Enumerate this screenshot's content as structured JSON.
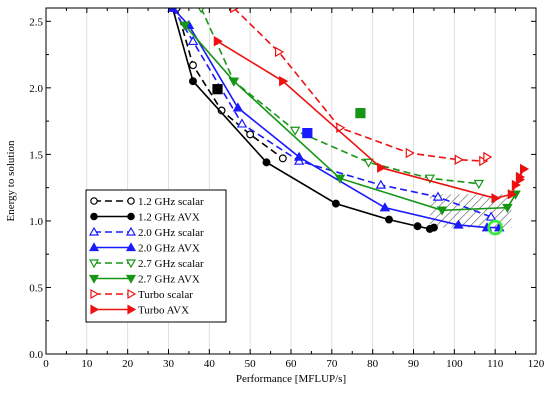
{
  "chart_data": {
    "type": "line",
    "xlabel": "Performance [MFLUP/s]",
    "ylabel": "Energy to solution",
    "xlim": [
      0,
      120
    ],
    "ylim": [
      0,
      2.6
    ],
    "xticks": [
      0,
      10,
      20,
      30,
      40,
      50,
      60,
      70,
      80,
      90,
      100,
      110,
      120
    ],
    "yticks": [
      0.0,
      0.5,
      1.0,
      1.5,
      2.0,
      2.5
    ],
    "xtick_labels": [
      "0",
      "10",
      "20",
      "30",
      "40",
      "50",
      "60",
      "70",
      "80",
      "90",
      "100",
      "110",
      "120"
    ],
    "ytick_labels": [
      "0.0",
      "0.5",
      "1.0",
      "1.5",
      "2.0",
      "2.5"
    ],
    "grid": "vertical",
    "legend_position": "lower-left",
    "colors": {
      "black": "#000000",
      "blue": "#1a1aff",
      "green": "#169616",
      "red": "#ee1111",
      "highlight_ring": "#33ee33",
      "hatch": "#555555"
    },
    "series": [
      {
        "name": "1.2 GHz scalar",
        "color": "#000000",
        "dash": true,
        "marker": "circle-open",
        "x": [
          32,
          36,
          43,
          50,
          58
        ],
        "y": [
          2.6,
          2.17,
          1.83,
          1.65,
          1.47
        ]
      },
      {
        "name": "1.2 GHz AVX",
        "color": "#000000",
        "dash": false,
        "marker": "circle-filled",
        "x": [
          31,
          36,
          54,
          71,
          84,
          91,
          94,
          95
        ],
        "y": [
          2.6,
          2.05,
          1.44,
          1.13,
          1.01,
          0.96,
          0.94,
          0.95
        ]
      },
      {
        "name": "2.0 GHz scalar",
        "color": "#1a1aff",
        "dash": true,
        "marker": "triangle-up-open",
        "x": [
          31,
          36,
          48,
          62,
          82,
          96,
          109
        ],
        "y": [
          2.6,
          2.35,
          1.73,
          1.45,
          1.27,
          1.18,
          1.03
        ]
      },
      {
        "name": "2.0 GHz AVX",
        "color": "#1a1aff",
        "dash": false,
        "marker": "triangle-up-filled",
        "x": [
          31,
          35,
          47,
          62,
          83,
          101,
          108,
          111
        ],
        "y": [
          2.6,
          2.47,
          1.85,
          1.48,
          1.1,
          0.97,
          0.95,
          0.95
        ]
      },
      {
        "name": "2.7 GHz scalar",
        "color": "#169616",
        "dash": true,
        "marker": "triangle-down-open",
        "x": [
          38,
          46,
          61,
          79,
          94,
          106
        ],
        "y": [
          2.6,
          2.05,
          1.68,
          1.44,
          1.32,
          1.28
        ]
      },
      {
        "name": "2.7 GHz AVX",
        "color": "#169616",
        "dash": false,
        "marker": "triangle-down-filled",
        "x": [
          34,
          46,
          72,
          97,
          113,
          115
        ],
        "y": [
          2.47,
          2.05,
          1.32,
          1.08,
          1.1,
          1.2
        ]
      },
      {
        "name": "Turbo scalar",
        "color": "#ee1111",
        "dash": true,
        "marker": "triangle-right-open",
        "x": [
          46,
          57,
          72,
          89,
          101,
          107,
          108
        ],
        "y": [
          2.6,
          2.27,
          1.7,
          1.51,
          1.46,
          1.45,
          1.48
        ]
      },
      {
        "name": "Turbo AVX",
        "color": "#ee1111",
        "dash": false,
        "marker": "triangle-right-filled",
        "x": [
          42,
          58,
          82,
          110,
          114,
          115,
          116,
          116,
          117
        ],
        "y": [
          2.35,
          2.05,
          1.4,
          1.17,
          1.2,
          1.27,
          1.31,
          1.33,
          1.39
        ]
      }
    ],
    "extra_points": [
      {
        "color": "#000000",
        "marker": "square-filled",
        "x": 42,
        "y": 1.99
      },
      {
        "color": "#1a1aff",
        "marker": "square-filled",
        "x": 64,
        "y": 1.66
      },
      {
        "color": "#169616",
        "marker": "square-filled",
        "x": 77,
        "y": 1.81
      }
    ],
    "highlight": {
      "x": 110,
      "y": 0.95
    },
    "hatched_region": {
      "x_min": 94,
      "x_max": 114,
      "y_min": 0.95,
      "y_max": 1.2
    }
  }
}
